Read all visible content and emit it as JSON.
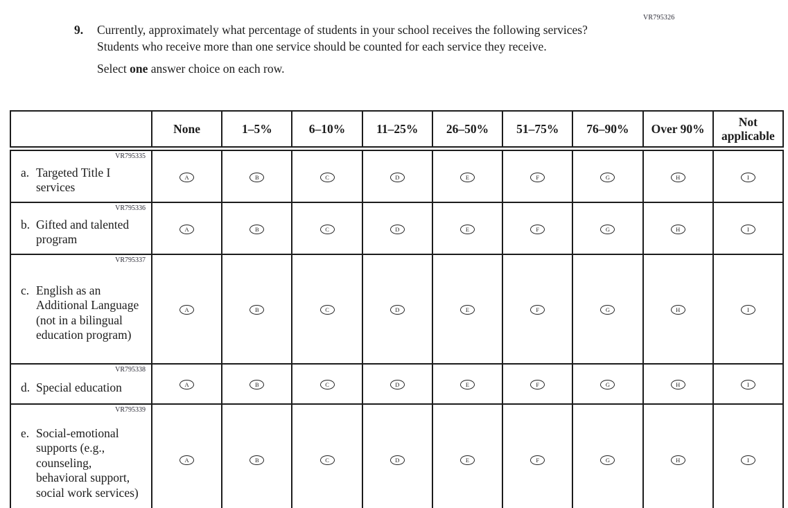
{
  "page": {
    "code_top_right": "VR795326",
    "question_number": "9.",
    "question_text": "Currently, approximately what percentage of students in your school receives the following services? Students who receive more than one service should be counted for each service they receive.",
    "select_prefix": "Select ",
    "select_bold": "one",
    "select_suffix": " answer choice on each row."
  },
  "colors": {
    "ink": "#1c1c1c",
    "background": "#ffffff"
  },
  "table": {
    "columns": [
      "None",
      "1–5%",
      "6–10%",
      "11–25%",
      "26–50%",
      "51–75%",
      "76–90%",
      "Over 90%",
      "Not applicable"
    ],
    "options": [
      "A",
      "B",
      "C",
      "D",
      "E",
      "F",
      "G",
      "H",
      "I"
    ],
    "rows": [
      {
        "code": "VR795335",
        "letter": "a.",
        "label": "Targeted Title I services"
      },
      {
        "code": "VR795336",
        "letter": "b.",
        "label": "Gifted and talented program"
      },
      {
        "code": "VR795337",
        "letter": "c.",
        "label": "English as an Additional Language (not in a bilingual education program)"
      },
      {
        "code": "VR795338",
        "letter": "d.",
        "label": "Special education"
      },
      {
        "code": "VR795339",
        "letter": "e.",
        "label": "Social-emotional supports (e.g., counseling, behavioral support, social work services)"
      }
    ]
  }
}
